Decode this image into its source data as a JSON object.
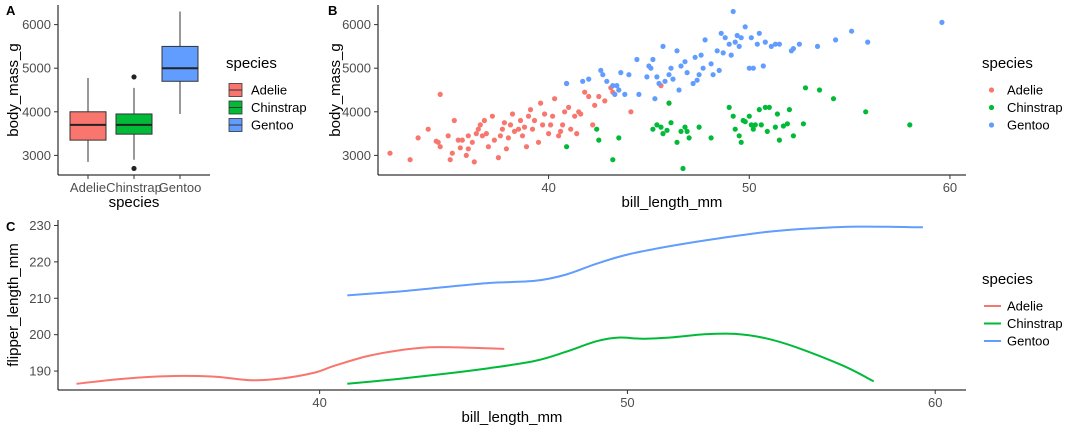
{
  "colors": {
    "Adelie": "#F8766D",
    "Chinstrap": "#00BA38",
    "Gentoo": "#619CFF"
  },
  "chart_data": [
    {
      "panel": "A",
      "type": "box",
      "xlabel": "species",
      "ylabel": "body_mass_g",
      "categories": [
        "Adelie",
        "Chinstrap",
        "Gentoo"
      ],
      "yticks": [
        3000,
        4000,
        5000,
        6000
      ],
      "ylim": [
        2550,
        6450
      ],
      "boxes": [
        {
          "name": "Adelie",
          "min": 2850,
          "q1": 3350,
          "median": 3700,
          "q3": 4000,
          "max": 4775,
          "outliers": []
        },
        {
          "name": "Chinstrap",
          "min": 2900,
          "q1": 3487,
          "median": 3700,
          "q3": 3950,
          "max": 4550,
          "outliers": [
            4800,
            2700
          ]
        },
        {
          "name": "Gentoo",
          "min": 3950,
          "q1": 4700,
          "median": 5000,
          "q3": 5500,
          "max": 6300,
          "outliers": []
        }
      ],
      "legend": {
        "title": "species",
        "entries": [
          "Adelie",
          "Chinstrap",
          "Gentoo"
        ]
      }
    },
    {
      "panel": "B",
      "type": "scatter",
      "xlabel": "bill_length_mm",
      "ylabel": "body_mass_g",
      "xticks": [
        40,
        50,
        60
      ],
      "yticks": [
        3000,
        4000,
        5000,
        6000
      ],
      "xlim": [
        31.5,
        60.8
      ],
      "ylim": [
        2550,
        6450
      ],
      "legend": {
        "title": "species",
        "entries": [
          "Adelie",
          "Chinstrap",
          "Gentoo"
        ]
      },
      "series": [
        {
          "name": "Adelie",
          "points": [
            [
              32.1,
              3050
            ],
            [
              33.1,
              2900
            ],
            [
              33.5,
              3400
            ],
            [
              34,
              3600
            ],
            [
              34.4,
              3325
            ],
            [
              34.5,
              3300
            ],
            [
              34.6,
              3200
            ],
            [
              34.6,
              4400
            ],
            [
              35,
              3450
            ],
            [
              35.1,
              2900
            ],
            [
              35.2,
              3050
            ],
            [
              35.3,
              3800
            ],
            [
              35.5,
              3350
            ],
            [
              35.6,
              3175
            ],
            [
              35.7,
              3350
            ],
            [
              35.9,
              3000
            ],
            [
              36,
              3150
            ],
            [
              36,
              3450
            ],
            [
              36.2,
              3300
            ],
            [
              36.3,
              2850
            ],
            [
              36.4,
              3500
            ],
            [
              36.5,
              3600
            ],
            [
              36.6,
              3700
            ],
            [
              36.7,
              3450
            ],
            [
              36.8,
              3800
            ],
            [
              36.9,
              3500
            ],
            [
              37,
              3200
            ],
            [
              37.2,
              3900
            ],
            [
              37.3,
              3350
            ],
            [
              37.5,
              2950
            ],
            [
              37.6,
              3450
            ],
            [
              37.7,
              3600
            ],
            [
              37.8,
              3750
            ],
            [
              37.9,
              3150
            ],
            [
              38,
              3400
            ],
            [
              38.1,
              3700
            ],
            [
              38.2,
              3950
            ],
            [
              38.3,
              3550
            ],
            [
              38.5,
              3600
            ],
            [
              38.6,
              3800
            ],
            [
              38.7,
              3450
            ],
            [
              38.8,
              3650
            ],
            [
              38.9,
              3200
            ],
            [
              39,
              3900
            ],
            [
              39.1,
              4050
            ],
            [
              39.2,
              3600
            ],
            [
              39.3,
              3800
            ],
            [
              39.5,
              3300
            ],
            [
              39.6,
              4200
            ],
            [
              39.7,
              3700
            ],
            [
              39.8,
              3950
            ],
            [
              40,
              3500
            ],
            [
              40.1,
              3700
            ],
            [
              40.2,
              3900
            ],
            [
              40.3,
              4300
            ],
            [
              40.5,
              3450
            ],
            [
              40.6,
              3550
            ],
            [
              40.7,
              3700
            ],
            [
              40.8,
              4000
            ],
            [
              40.9,
              4650
            ],
            [
              41,
              4100
            ],
            [
              41.1,
              3600
            ],
            [
              41.3,
              3900
            ],
            [
              41.4,
              3500
            ],
            [
              41.5,
              4000
            ],
            [
              41.6,
              3950
            ],
            [
              41.8,
              4450
            ],
            [
              42,
              4350
            ],
            [
              42.2,
              3700
            ],
            [
              42.3,
              4150
            ],
            [
              42.5,
              4350
            ],
            [
              42.8,
              4250
            ],
            [
              43.1,
              4550
            ],
            [
              43.2,
              4450
            ],
            [
              44.1,
              4000
            ],
            [
              45.6,
              4600
            ],
            [
              46,
              4200
            ]
          ]
        },
        {
          "name": "Chinstrap",
          "points": [
            [
              40.9,
              3200
            ],
            [
              42.4,
              3600
            ],
            [
              42.5,
              3350
            ],
            [
              43.2,
              2900
            ],
            [
              43.5,
              3400
            ],
            [
              45.2,
              3600
            ],
            [
              45.4,
              3700
            ],
            [
              45.6,
              3650
            ],
            [
              45.7,
              3500
            ],
            [
              45.9,
              3575
            ],
            [
              46,
              4200
            ],
            [
              46.1,
              3750
            ],
            [
              46.4,
              3300
            ],
            [
              46.6,
              3550
            ],
            [
              46.7,
              2700
            ],
            [
              46.8,
              3650
            ],
            [
              46.9,
              3550
            ],
            [
              47,
              3400
            ],
            [
              47.5,
              3650
            ],
            [
              48.1,
              3400
            ],
            [
              49,
              4100
            ],
            [
              49.2,
              3900
            ],
            [
              49.3,
              3600
            ],
            [
              49.5,
              3450
            ],
            [
              49.6,
              3300
            ],
            [
              49.7,
              3800
            ],
            [
              49.8,
              3775
            ],
            [
              50,
              3900
            ],
            [
              50.1,
              3700
            ],
            [
              50.2,
              3600
            ],
            [
              50.3,
              3700
            ],
            [
              50.5,
              4050
            ],
            [
              50.6,
              3700
            ],
            [
              50.8,
              4100
            ],
            [
              50.9,
              3550
            ],
            [
              51,
              4100
            ],
            [
              51.3,
              3650
            ],
            [
              51.4,
              3950
            ],
            [
              51.5,
              3350
            ],
            [
              51.7,
              3675
            ],
            [
              51.9,
              3725
            ],
            [
              52,
              4050
            ],
            [
              52.2,
              3450
            ],
            [
              52.7,
              3725
            ],
            [
              52.8,
              4550
            ],
            [
              53.5,
              4500
            ],
            [
              54.2,
              4300
            ],
            [
              55.8,
              4000
            ],
            [
              58,
              3700
            ]
          ]
        },
        {
          "name": "Gentoo",
          "points": [
            [
              40.9,
              4650
            ],
            [
              41.7,
              4700
            ],
            [
              42,
              4750
            ],
            [
              42.6,
              4950
            ],
            [
              42.7,
              4850
            ],
            [
              42.9,
              4700
            ],
            [
              43.2,
              4600
            ],
            [
              43.3,
              4400
            ],
            [
              43.4,
              4600
            ],
            [
              43.5,
              4500
            ],
            [
              43.6,
              4900
            ],
            [
              43.8,
              4400
            ],
            [
              44,
              4850
            ],
            [
              44.4,
              5200
            ],
            [
              44.5,
              4400
            ],
            [
              44.9,
              4800
            ],
            [
              45,
              5050
            ],
            [
              45.1,
              5000
            ],
            [
              45.2,
              5200
            ],
            [
              45.3,
              4300
            ],
            [
              45.4,
              4800
            ],
            [
              45.5,
              4650
            ],
            [
              45.7,
              5500
            ],
            [
              45.8,
              4700
            ],
            [
              46,
              4850
            ],
            [
              46.1,
              5000
            ],
            [
              46.2,
              4750
            ],
            [
              46.4,
              5400
            ],
            [
              46.5,
              4500
            ],
            [
              46.6,
              5050
            ],
            [
              46.8,
              5150
            ],
            [
              46.9,
              4900
            ],
            [
              47.2,
              4650
            ],
            [
              47.3,
              5250
            ],
            [
              47.4,
              4725
            ],
            [
              47.5,
              4850
            ],
            [
              47.6,
              5300
            ],
            [
              47.7,
              5000
            ],
            [
              47.8,
              5650
            ],
            [
              48.1,
              5100
            ],
            [
              48.2,
              4850
            ],
            [
              48.4,
              5400
            ],
            [
              48.5,
              4950
            ],
            [
              48.6,
              5800
            ],
            [
              48.7,
              5350
            ],
            [
              48.8,
              5700
            ],
            [
              49,
              5550
            ],
            [
              49.1,
              5300
            ],
            [
              49.2,
              6300
            ],
            [
              49.3,
              5600
            ],
            [
              49.4,
              5750
            ],
            [
              49.5,
              5500
            ],
            [
              49.6,
              5700
            ],
            [
              49.8,
              5950
            ],
            [
              50,
              5000
            ],
            [
              50.1,
              5700
            ],
            [
              50.2,
              5000
            ],
            [
              50.4,
              5550
            ],
            [
              50.5,
              5800
            ],
            [
              50.7,
              5050
            ],
            [
              50.8,
              5600
            ],
            [
              51.1,
              5500
            ],
            [
              51.3,
              5550
            ],
            [
              51.5,
              5550
            ],
            [
              52.1,
              5400
            ],
            [
              52.2,
              5450
            ],
            [
              52.5,
              5550
            ],
            [
              53.4,
              5500
            ],
            [
              54.3,
              5650
            ],
            [
              55.1,
              5850
            ],
            [
              55.9,
              5600
            ],
            [
              59.6,
              6050
            ]
          ]
        }
      ]
    },
    {
      "panel": "C",
      "type": "line",
      "xlabel": "bill_length_mm",
      "ylabel": "flipper_length_mm",
      "xticks": [
        40,
        50,
        60
      ],
      "yticks": [
        190,
        200,
        210,
        220,
        230
      ],
      "xlim": [
        31.5,
        61
      ],
      "ylim": [
        184.8,
        231.5
      ],
      "legend": {
        "title": "species",
        "entries": [
          "Adelie",
          "Chinstrap",
          "Gentoo"
        ]
      },
      "series": [
        {
          "name": "Adelie",
          "points": [
            [
              32.1,
              186.5
            ],
            [
              33.5,
              187.8
            ],
            [
              35,
              188.6
            ],
            [
              36.5,
              188.5
            ],
            [
              37.8,
              187.5
            ],
            [
              38.8,
              188
            ],
            [
              39.8,
              189.5
            ],
            [
              40.5,
              191.5
            ],
            [
              41.5,
              194
            ],
            [
              42.5,
              195.6
            ],
            [
              43.5,
              196.5
            ],
            [
              44.5,
              196.5
            ],
            [
              46,
              196.1
            ]
          ]
        },
        {
          "name": "Chinstrap",
          "points": [
            [
              40.9,
              186.5
            ],
            [
              42.5,
              187.8
            ],
            [
              44,
              189.2
            ],
            [
              45.5,
              190.8
            ],
            [
              47,
              192.8
            ],
            [
              48,
              195.3
            ],
            [
              49,
              198.2
            ],
            [
              49.7,
              199.2
            ],
            [
              50.5,
              198.9
            ],
            [
              51.5,
              199.3
            ],
            [
              52.5,
              200.1
            ],
            [
              53.5,
              200.2
            ],
            [
              54.5,
              199
            ],
            [
              55.5,
              196.5
            ],
            [
              57,
              191.5
            ],
            [
              58,
              187.2
            ]
          ]
        },
        {
          "name": "Gentoo",
          "points": [
            [
              40.9,
              210.8
            ],
            [
              42.5,
              211.8
            ],
            [
              44,
              213
            ],
            [
              45.5,
              214.2
            ],
            [
              47,
              214.8
            ],
            [
              48,
              216.5
            ],
            [
              49,
              219.5
            ],
            [
              50,
              222
            ],
            [
              51.5,
              224.5
            ],
            [
              53,
              226.5
            ],
            [
              54.5,
              228.2
            ],
            [
              56,
              229.2
            ],
            [
              57.5,
              229.7
            ],
            [
              59.6,
              229.5
            ]
          ]
        }
      ]
    }
  ]
}
